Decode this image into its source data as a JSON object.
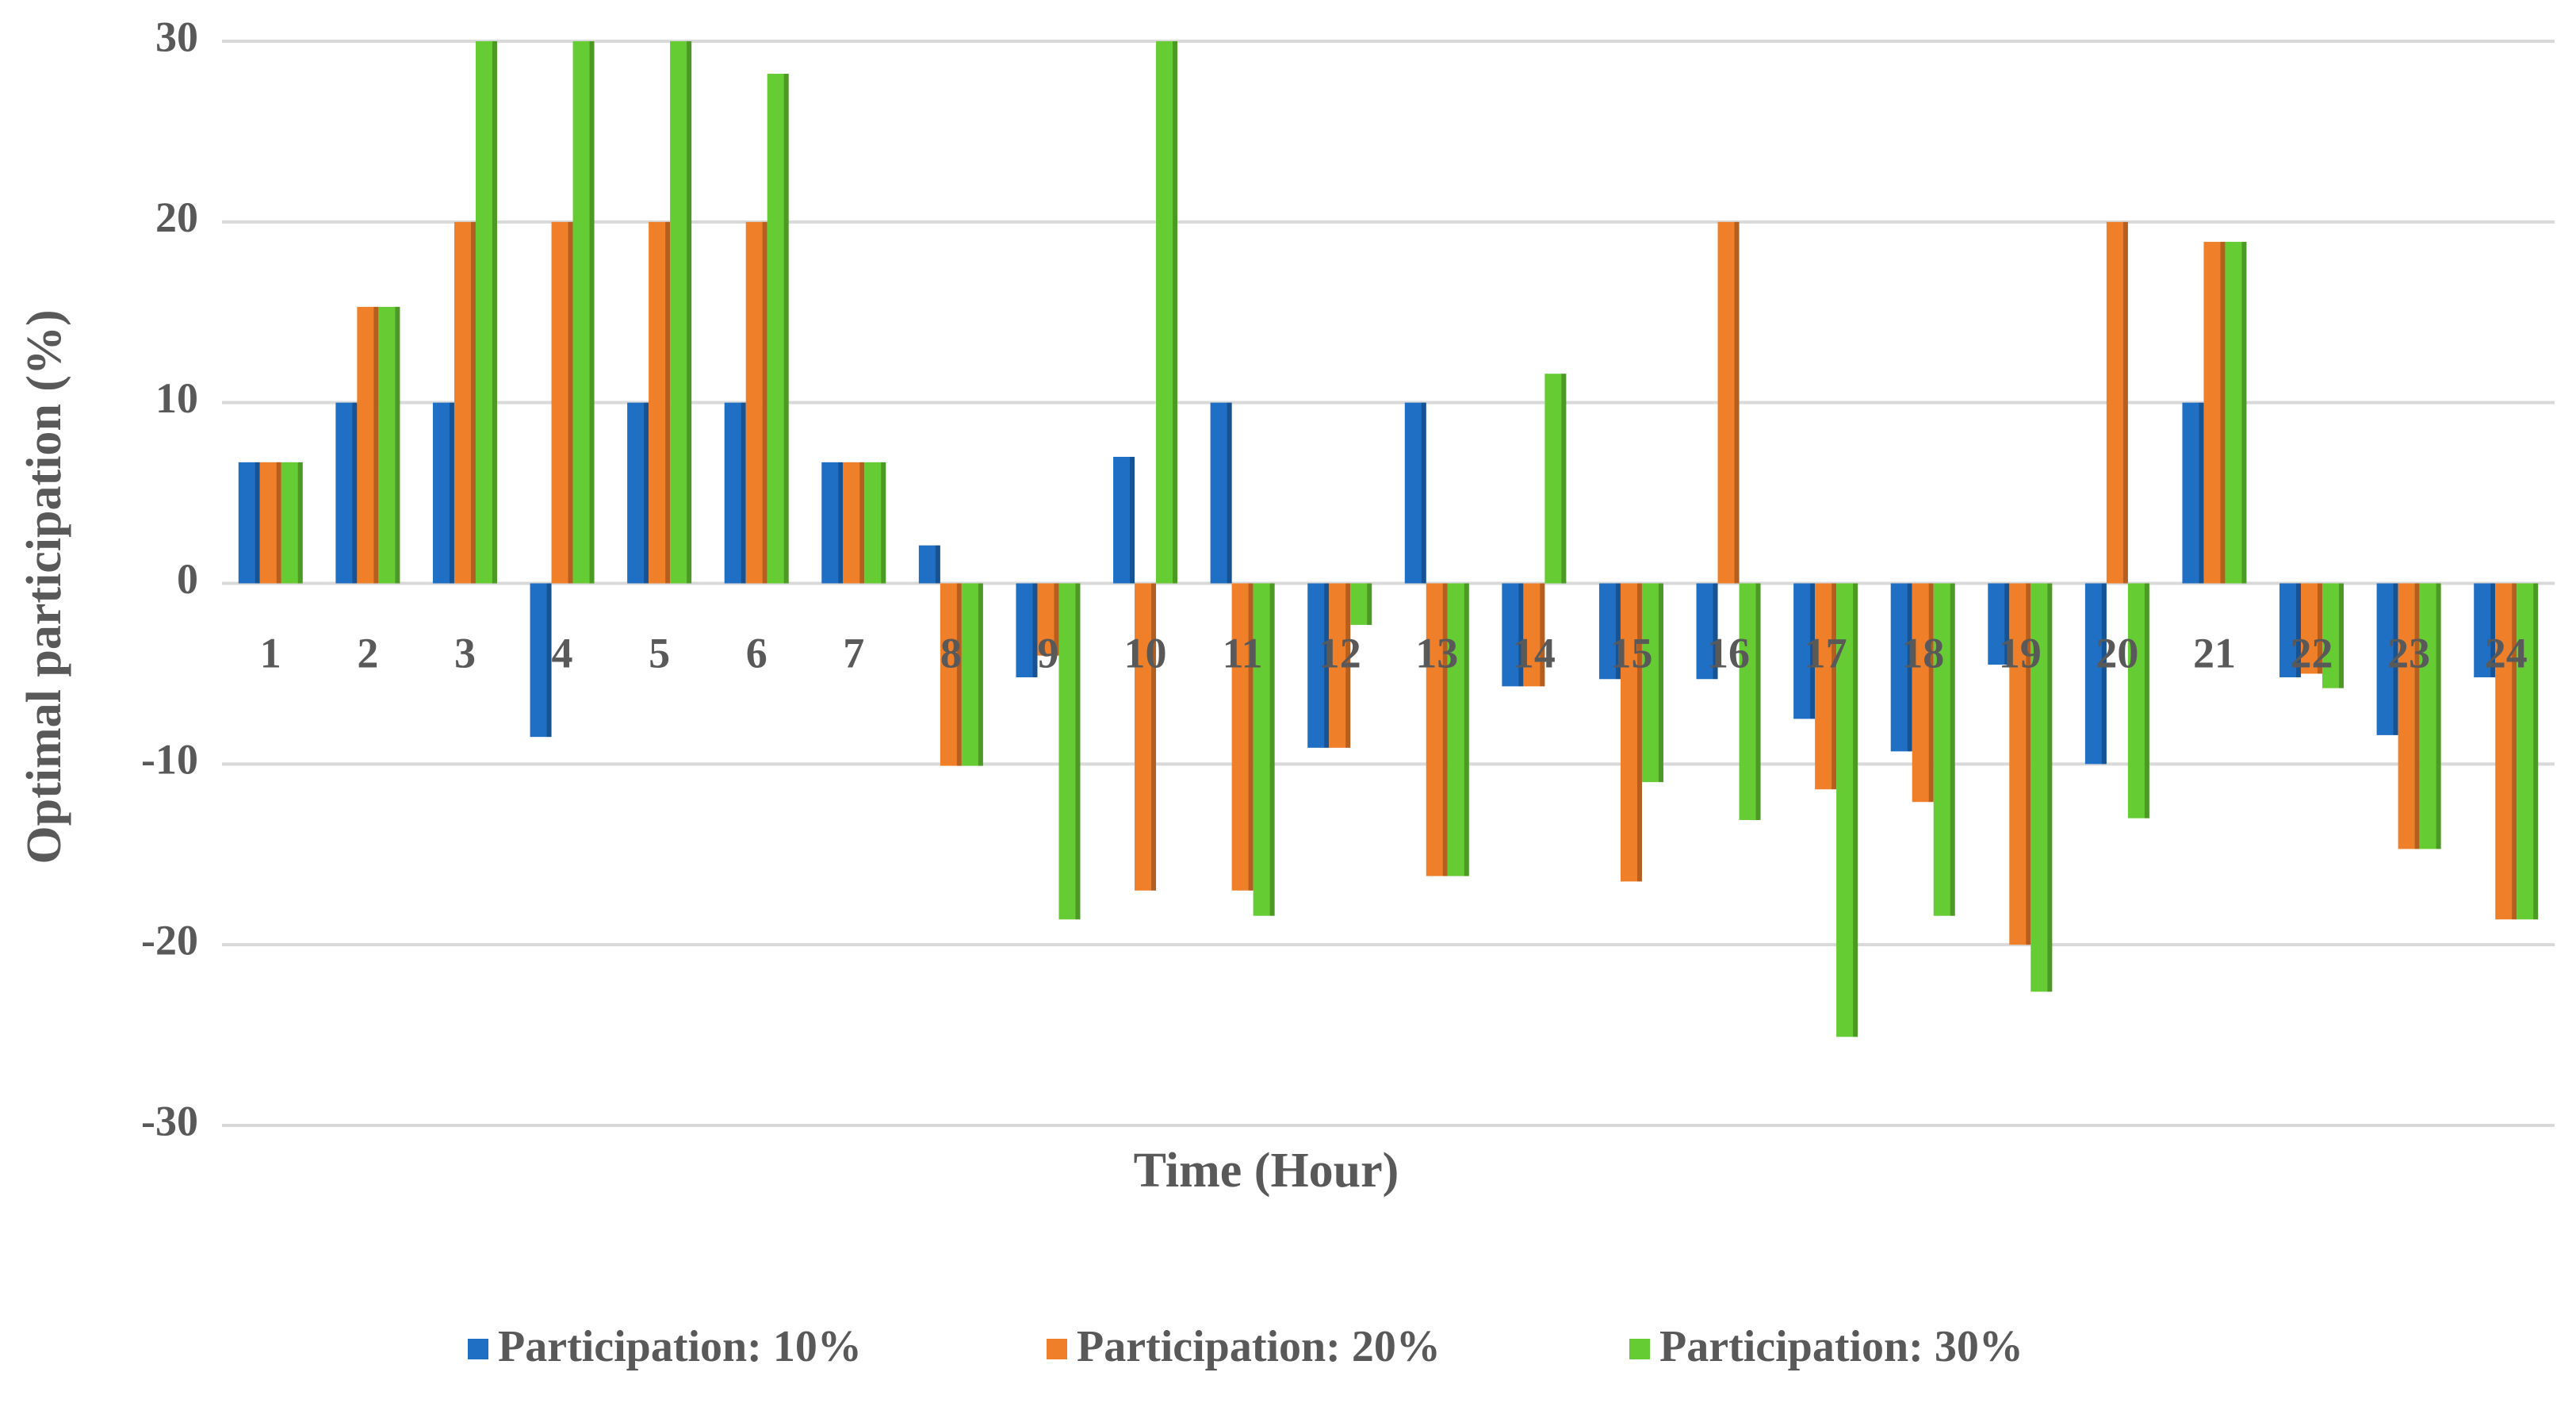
{
  "chart_data": {
    "type": "bar",
    "x_label": "Time (Hour)",
    "y_label": "Optimal participation (%)",
    "categories": [
      "1",
      "2",
      "3",
      "4",
      "5",
      "6",
      "7",
      "8",
      "9",
      "10",
      "11",
      "12",
      "13",
      "14",
      "15",
      "16",
      "17",
      "18",
      "19",
      "20",
      "21",
      "22",
      "23",
      "24"
    ],
    "series": [
      {
        "name": "Participation: 10%",
        "color": "#1f6fc5",
        "values": [
          6.7,
          10,
          10,
          -8.5,
          10,
          10,
          6.7,
          2.1,
          -5.2,
          7,
          10,
          -9.1,
          10,
          -5.7,
          -5.3,
          -5.3,
          -7.5,
          -9.3,
          -4.5,
          -10,
          10,
          -5.2,
          -8.4,
          -5.2
        ]
      },
      {
        "name": "Participation: 20%",
        "color": "#f07f2a",
        "values": [
          6.7,
          15.3,
          20,
          20,
          20,
          20,
          6.7,
          -10.1,
          -4,
          -17,
          -17,
          -9.1,
          -16.2,
          -5.7,
          -16.5,
          20,
          -11.4,
          -12.1,
          -20,
          20,
          18.9,
          -5,
          -14.7,
          -18.6
        ]
      },
      {
        "name": "Participation: 30%",
        "color": "#66cc33",
        "values": [
          6.7,
          15.3,
          30,
          30,
          30,
          28.2,
          6.7,
          -10.1,
          -18.6,
          30,
          -18.4,
          -2.3,
          -16.2,
          11.6,
          -11,
          -13.1,
          -25.1,
          -18.4,
          -22.6,
          -13,
          18.9,
          -5.8,
          -14.7,
          -18.6
        ]
      }
    ],
    "ylim": [
      -30,
      30
    ],
    "yticks": [
      -30,
      -20,
      -10,
      0,
      10,
      20,
      30
    ],
    "grid": true,
    "legend": "bottom"
  }
}
